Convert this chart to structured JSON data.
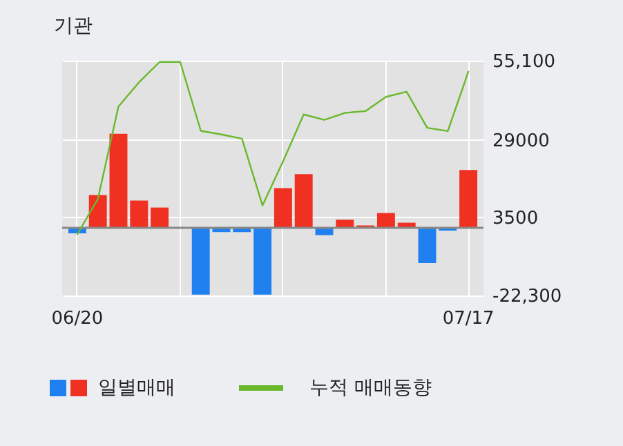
{
  "chart_data": {
    "type": "bar",
    "title": "기관",
    "categories": [
      "06/20",
      null,
      null,
      null,
      null,
      null,
      null,
      null,
      null,
      null,
      null,
      null,
      null,
      null,
      null,
      null,
      null,
      null,
      null,
      "07/17"
    ],
    "series": [
      {
        "name": "일별매매",
        "colors": [
          "#2080f0",
          "#f03020",
          "#f03020",
          "#f03020",
          "#f03020",
          "#f03020",
          "#2080f0",
          "#2080f0",
          "#2080f0",
          "#2080f0",
          "#f03020",
          "#f03020",
          "#2080f0",
          "#f03020",
          "#f03020",
          "#f03020",
          "#f03020",
          "#2080f0",
          "#2080f0",
          "#f03020"
        ],
        "values": [
          -1800,
          10800,
          31000,
          9000,
          6700,
          0,
          -22000,
          -1400,
          -1400,
          -22000,
          13100,
          17700,
          -2400,
          2700,
          800,
          4900,
          1700,
          -11600,
          -900,
          19100
        ]
      },
      {
        "name": "누적 매매동향",
        "type": "line",
        "color": "#6ab82c",
        "values": [
          -2100,
          9500,
          40000,
          48000,
          54700,
          54700,
          32000,
          30800,
          29400,
          7400,
          22000,
          37400,
          35600,
          37900,
          38500,
          43200,
          44900,
          33000,
          31900,
          51500
        ]
      }
    ],
    "ylim": [
      -22300,
      55100
    ],
    "yticks": [
      {
        "value": 55100,
        "label": "55,100"
      },
      29000,
      3500,
      {
        "value": -22300,
        "label": "-22,300"
      }
    ],
    "ref_lines": [
      {
        "axis": "y",
        "value": 0,
        "color": "#888888"
      }
    ],
    "grid": true,
    "legend": "bottom"
  }
}
